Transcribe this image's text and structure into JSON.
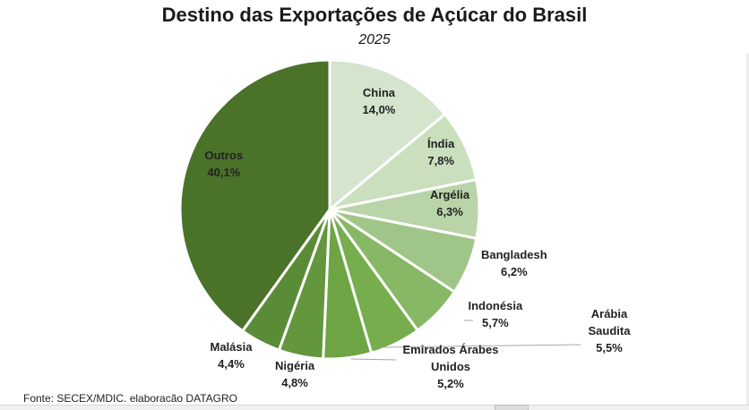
{
  "title": "Destino das Exportações de Açúcar do Brasil",
  "subtitle": "2025",
  "source": "Fonte: SECEX/MDIC. elaboracão DATAGRO",
  "colors": {
    "china": "#d5e4cc",
    "india": "#cadfbd",
    "argelia": "#b9d4a8",
    "bangladesh": "#a0c588",
    "indonesia": "#86b865",
    "arabia_saudita": "#76ae4d",
    "emirados": "#6da545",
    "nigeria": "#63963d",
    "malasia": "#5a8b37",
    "outros": "#4a7229",
    "separator": "#ffffff",
    "leader_line": "#a6a6a6"
  },
  "chart_data": {
    "type": "pie",
    "title": "Destino das Exportações de Açúcar do Brasil",
    "subtitle": "2025",
    "value_format": "percent",
    "slices": [
      {
        "name": "China",
        "value": 14.0,
        "label": "14,0%"
      },
      {
        "name": "Índia",
        "value": 7.8,
        "label": "7,8%"
      },
      {
        "name": "Argélia",
        "value": 6.3,
        "label": "6,3%"
      },
      {
        "name": "Bangladesh",
        "value": 6.2,
        "label": "6,2%"
      },
      {
        "name": "Indonésia",
        "value": 5.7,
        "label": "5,7%"
      },
      {
        "name": "Arábia Saudita",
        "value": 5.5,
        "label": "5,5%"
      },
      {
        "name": "Emirados Árabes Unidos",
        "value": 5.2,
        "label": "5,2%"
      },
      {
        "name": "Nigéria",
        "value": 4.8,
        "label": "4,8%"
      },
      {
        "name": "Malásia",
        "value": 4.4,
        "label": "4,4%"
      },
      {
        "name": "Outros",
        "value": 40.1,
        "label": "40,1%"
      }
    ]
  }
}
